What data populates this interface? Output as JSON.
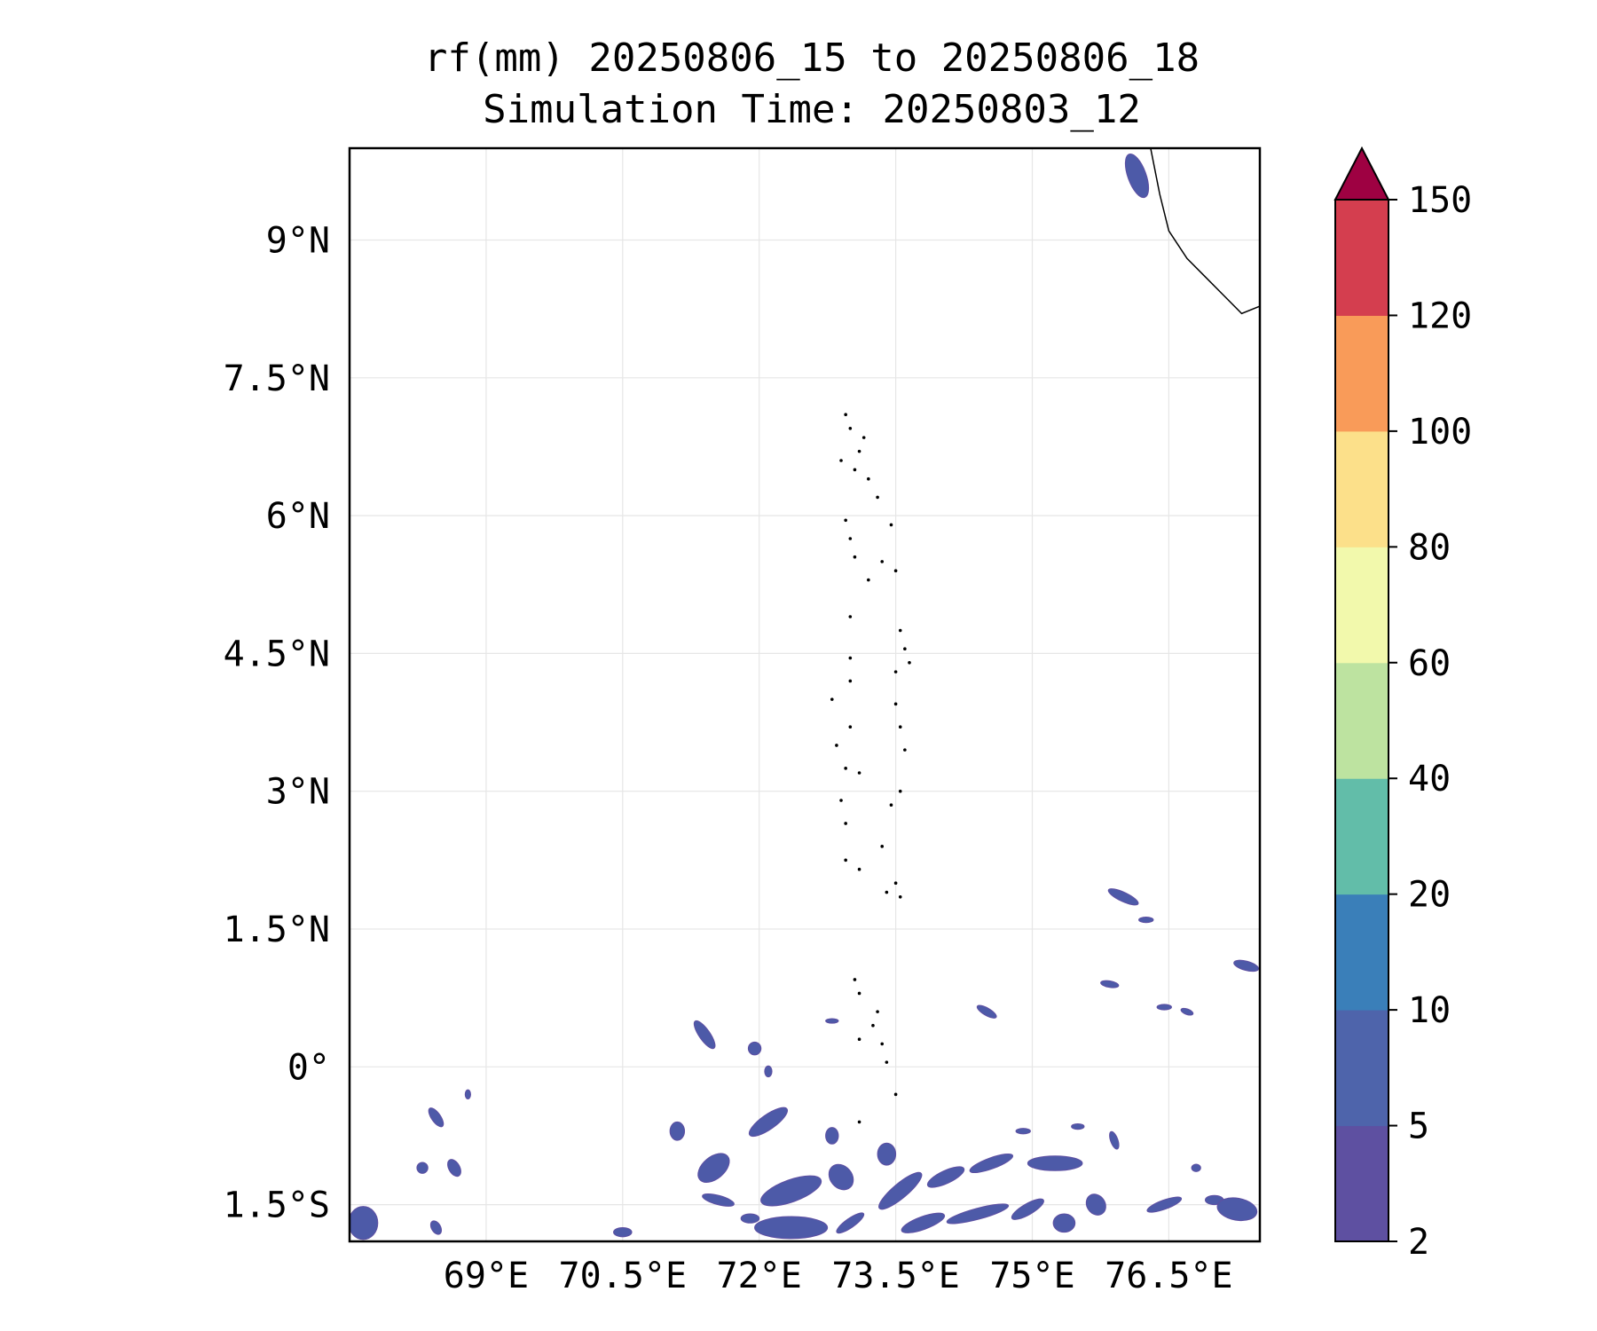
{
  "title": {
    "line1": "rf(mm) 20250806_15 to 20250806_18",
    "line2": "Simulation Time: 20250803_12"
  },
  "map": {
    "lon_range": [
      67.5,
      77.5
    ],
    "lat_range": [
      -1.9,
      10.0
    ],
    "gridlines": true,
    "lon_ticks": [
      {
        "value": 69.0,
        "label": "69°E"
      },
      {
        "value": 70.5,
        "label": "70.5°E"
      },
      {
        "value": 72.0,
        "label": "72°E"
      },
      {
        "value": 73.5,
        "label": "73.5°E"
      },
      {
        "value": 75.0,
        "label": "75°E"
      },
      {
        "value": 76.5,
        "label": "76.5°E"
      }
    ],
    "lat_ticks": [
      {
        "value": 9.0,
        "label": "9°N"
      },
      {
        "value": 7.5,
        "label": "7.5°N"
      },
      {
        "value": 6.0,
        "label": "6°N"
      },
      {
        "value": 4.5,
        "label": "4.5°N"
      },
      {
        "value": 3.0,
        "label": "3°N"
      },
      {
        "value": 1.5,
        "label": "1.5°N"
      },
      {
        "value": 0.0,
        "label": "0°"
      },
      {
        "value": -1.5,
        "label": "1.5°S"
      }
    ],
    "coastline_india": [
      [
        76.3,
        10.0
      ],
      [
        76.4,
        9.5
      ],
      [
        76.5,
        9.1
      ],
      [
        76.7,
        8.8
      ],
      [
        76.9,
        8.6
      ],
      [
        77.1,
        8.4
      ],
      [
        77.3,
        8.2
      ],
      [
        77.5,
        8.28
      ]
    ],
    "maldives_atolls": [
      [
        72.95,
        7.1
      ],
      [
        73.0,
        6.95
      ],
      [
        73.15,
        6.85
      ],
      [
        73.1,
        6.7
      ],
      [
        72.9,
        6.6
      ],
      [
        73.05,
        6.5
      ],
      [
        73.2,
        6.4
      ],
      [
        73.3,
        6.2
      ],
      [
        72.95,
        5.95
      ],
      [
        73.0,
        5.75
      ],
      [
        73.05,
        5.55
      ],
      [
        73.2,
        5.3
      ],
      [
        73.5,
        5.4
      ],
      [
        73.45,
        5.9
      ],
      [
        73.35,
        5.5
      ],
      [
        73.0,
        4.9
      ],
      [
        73.55,
        4.75
      ],
      [
        73.6,
        4.55
      ],
      [
        73.5,
        4.3
      ],
      [
        73.65,
        4.4
      ],
      [
        73.0,
        4.45
      ],
      [
        73.0,
        4.2
      ],
      [
        72.8,
        4.0
      ],
      [
        73.0,
        3.7
      ],
      [
        72.85,
        3.5
      ],
      [
        73.55,
        3.7
      ],
      [
        73.5,
        3.95
      ],
      [
        73.6,
        3.45
      ],
      [
        72.95,
        3.25
      ],
      [
        73.1,
        3.2
      ],
      [
        72.9,
        2.9
      ],
      [
        72.95,
        2.65
      ],
      [
        73.45,
        2.85
      ],
      [
        73.55,
        3.0
      ],
      [
        73.35,
        2.4
      ],
      [
        72.95,
        2.25
      ],
      [
        73.1,
        2.15
      ],
      [
        73.4,
        1.9
      ],
      [
        73.55,
        1.85
      ],
      [
        73.5,
        2.0
      ],
      [
        73.05,
        0.95
      ],
      [
        73.1,
        0.8
      ],
      [
        73.3,
        0.6
      ],
      [
        73.25,
        0.45
      ],
      [
        73.1,
        0.3
      ],
      [
        73.35,
        0.25
      ],
      [
        73.4,
        0.05
      ],
      [
        73.5,
        -0.3
      ],
      [
        73.1,
        -0.6
      ]
    ]
  },
  "rainfall_patches": [
    {
      "lon": 76.15,
      "lat": 9.7,
      "rx": 0.1,
      "ry": 0.25,
      "rot": -20
    },
    {
      "lon": 76.0,
      "lat": 1.85,
      "rx": 0.18,
      "ry": 0.05,
      "rot": 25
    },
    {
      "lon": 76.25,
      "lat": 1.6,
      "rx": 0.08,
      "ry": 0.03,
      "rot": 0
    },
    {
      "lon": 77.35,
      "lat": 1.1,
      "rx": 0.14,
      "ry": 0.05,
      "rot": 15
    },
    {
      "lon": 75.85,
      "lat": 0.9,
      "rx": 0.1,
      "ry": 0.035,
      "rot": 10
    },
    {
      "lon": 76.45,
      "lat": 0.65,
      "rx": 0.08,
      "ry": 0.03,
      "rot": 0
    },
    {
      "lon": 76.7,
      "lat": 0.6,
      "rx": 0.07,
      "ry": 0.03,
      "rot": 20
    },
    {
      "lon": 74.5,
      "lat": 0.6,
      "rx": 0.12,
      "ry": 0.04,
      "rot": 30
    },
    {
      "lon": 71.4,
      "lat": 0.35,
      "rx": 0.06,
      "ry": 0.18,
      "rot": -35
    },
    {
      "lon": 71.95,
      "lat": 0.2,
      "rx": 0.07,
      "ry": 0.07,
      "rot": 0
    },
    {
      "lon": 72.8,
      "lat": 0.5,
      "rx": 0.07,
      "ry": 0.025,
      "rot": 0
    },
    {
      "lon": 72.1,
      "lat": -0.05,
      "rx": 0.04,
      "ry": 0.06,
      "rot": 0
    },
    {
      "lon": 68.45,
      "lat": -0.55,
      "rx": 0.05,
      "ry": 0.12,
      "rot": -35
    },
    {
      "lon": 68.3,
      "lat": -1.1,
      "rx": 0.06,
      "ry": 0.06,
      "rot": 0
    },
    {
      "lon": 68.65,
      "lat": -1.1,
      "rx": 0.06,
      "ry": 0.1,
      "rot": -30
    },
    {
      "lon": 68.8,
      "lat": -0.3,
      "rx": 0.03,
      "ry": 0.05,
      "rot": 0
    },
    {
      "lon": 67.65,
      "lat": -1.7,
      "rx": 0.16,
      "ry": 0.18,
      "rot": 0
    },
    {
      "lon": 68.45,
      "lat": -1.75,
      "rx": 0.05,
      "ry": 0.08,
      "rot": -30
    },
    {
      "lon": 71.1,
      "lat": -0.7,
      "rx": 0.08,
      "ry": 0.1,
      "rot": 0
    },
    {
      "lon": 71.5,
      "lat": -1.1,
      "rx": 0.2,
      "ry": 0.12,
      "rot": -40
    },
    {
      "lon": 71.55,
      "lat": -1.45,
      "rx": 0.18,
      "ry": 0.05,
      "rot": 15
    },
    {
      "lon": 72.1,
      "lat": -0.6,
      "rx": 0.25,
      "ry": 0.08,
      "rot": -35
    },
    {
      "lon": 72.35,
      "lat": -1.35,
      "rx": 0.35,
      "ry": 0.12,
      "rot": -20
    },
    {
      "lon": 72.35,
      "lat": -1.75,
      "rx": 0.4,
      "ry": 0.12,
      "rot": 0
    },
    {
      "lon": 71.9,
      "lat": -1.65,
      "rx": 0.1,
      "ry": 0.05,
      "rot": 0
    },
    {
      "lon": 72.8,
      "lat": -0.75,
      "rx": 0.07,
      "ry": 0.09,
      "rot": 0
    },
    {
      "lon": 72.9,
      "lat": -1.2,
      "rx": 0.12,
      "ry": 0.15,
      "rot": -40
    },
    {
      "lon": 73.0,
      "lat": -1.7,
      "rx": 0.18,
      "ry": 0.05,
      "rot": -35
    },
    {
      "lon": 73.55,
      "lat": -1.35,
      "rx": 0.3,
      "ry": 0.08,
      "rot": -40
    },
    {
      "lon": 73.8,
      "lat": -1.7,
      "rx": 0.25,
      "ry": 0.07,
      "rot": -20
    },
    {
      "lon": 74.05,
      "lat": -1.2,
      "rx": 0.22,
      "ry": 0.07,
      "rot": -25
    },
    {
      "lon": 74.4,
      "lat": -1.6,
      "rx": 0.35,
      "ry": 0.06,
      "rot": -15
    },
    {
      "lon": 74.55,
      "lat": -1.05,
      "rx": 0.25,
      "ry": 0.06,
      "rot": -20
    },
    {
      "lon": 74.95,
      "lat": -1.55,
      "rx": 0.2,
      "ry": 0.06,
      "rot": -30
    },
    {
      "lon": 75.25,
      "lat": -1.05,
      "rx": 0.3,
      "ry": 0.08,
      "rot": 0
    },
    {
      "lon": 75.35,
      "lat": -1.7,
      "rx": 0.12,
      "ry": 0.1,
      "rot": 0
    },
    {
      "lon": 75.7,
      "lat": -1.5,
      "rx": 0.1,
      "ry": 0.12,
      "rot": -35
    },
    {
      "lon": 74.9,
      "lat": -0.7,
      "rx": 0.08,
      "ry": 0.03,
      "rot": 0
    },
    {
      "lon": 75.5,
      "lat": -0.65,
      "rx": 0.07,
      "ry": 0.03,
      "rot": 0
    },
    {
      "lon": 75.9,
      "lat": -0.8,
      "rx": 0.04,
      "ry": 0.1,
      "rot": -20
    },
    {
      "lon": 76.45,
      "lat": -1.5,
      "rx": 0.2,
      "ry": 0.05,
      "rot": -20
    },
    {
      "lon": 77.0,
      "lat": -1.45,
      "rx": 0.1,
      "ry": 0.05,
      "rot": 0
    },
    {
      "lon": 77.25,
      "lat": -1.55,
      "rx": 0.22,
      "ry": 0.12,
      "rot": 10
    },
    {
      "lon": 76.8,
      "lat": -1.1,
      "rx": 0.05,
      "ry": 0.04,
      "rot": 0
    },
    {
      "lon": 73.4,
      "lat": -0.95,
      "rx": 0.1,
      "ry": 0.12,
      "rot": 0
    },
    {
      "lon": 70.5,
      "lat": -1.8,
      "rx": 0.1,
      "ry": 0.05,
      "rot": 0
    }
  ],
  "colorbar": {
    "boundaries": [
      2,
      5,
      10,
      20,
      40,
      60,
      80,
      100,
      120,
      150
    ],
    "tick_labels": [
      "2",
      "5",
      "10",
      "20",
      "40",
      "60",
      "80",
      "100",
      "120",
      "150"
    ],
    "colors": [
      "#5e50a1",
      "#4e64ab",
      "#3a7fb9",
      "#62bda9",
      "#bde3a0",
      "#f2f9ac",
      "#fce08a",
      "#f99b59",
      "#d43e4f"
    ],
    "extend_color": "#9e0142",
    "extend": "max"
  },
  "style": {
    "rain_fill": "#4d5aa8",
    "rain_edge": "#5e4fa2",
    "grid_color": "#e6e6e6"
  }
}
